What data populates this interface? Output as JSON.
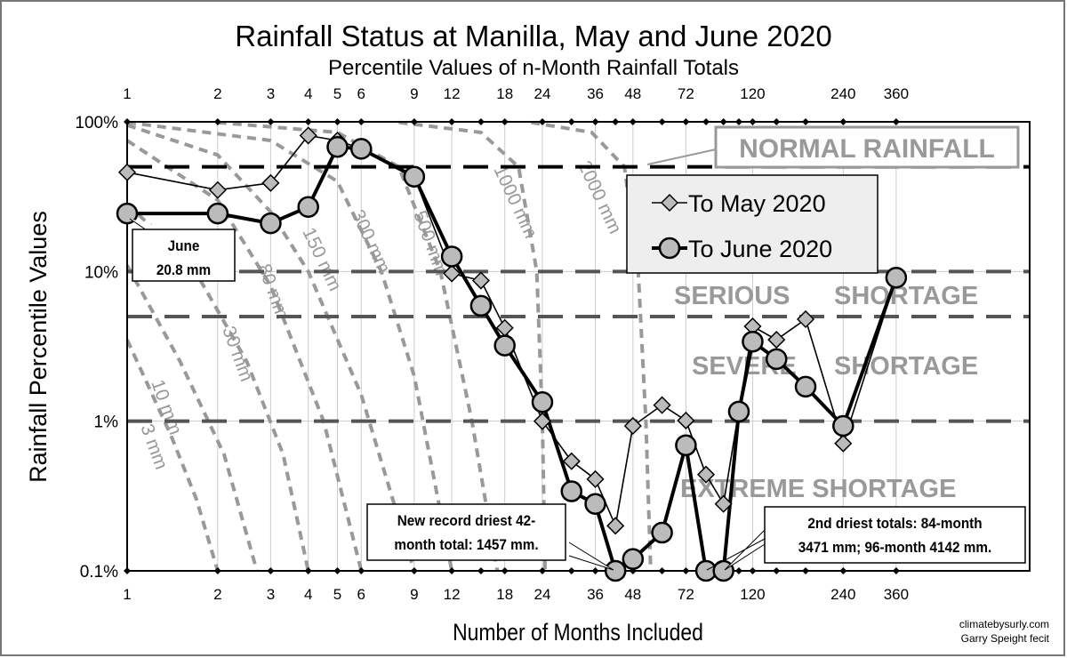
{
  "chart_data": {
    "type": "line",
    "title": "Rainfall Status at Manilla, May and June 2020",
    "subtitle": "Percentile Values of n-Month Rainfall Totals",
    "xlabel": "Number of Months Included",
    "ylabel": "Rainfall Percentile Values",
    "x_scale": "log",
    "y_scale": "log",
    "xlim": [
      1,
      1000
    ],
    "ylim": [
      0.1,
      100
    ],
    "x_ticks": [
      1,
      2,
      3,
      4,
      5,
      6,
      9,
      12,
      18,
      24,
      36,
      48,
      72,
      120,
      240,
      360
    ],
    "x_tick_labels": [
      "1",
      "2",
      "3",
      "4",
      "5",
      "6",
      "9",
      "12",
      "18",
      "24",
      "36",
      "48",
      "72",
      "120",
      "240",
      "360"
    ],
    "y_ticks": [
      0.1,
      1,
      10,
      100
    ],
    "y_tick_labels": [
      "0.1%",
      "1%",
      "10%",
      "100%"
    ],
    "grid": true,
    "legend_position": "top-right",
    "series": [
      {
        "name": "To May 2020",
        "marker": "diamond",
        "x": [
          1,
          2,
          3,
          4,
          5,
          6,
          9,
          12,
          15,
          18,
          24,
          30,
          36,
          42,
          48,
          60,
          72,
          84,
          96,
          120,
          144,
          180,
          240,
          360
        ],
        "y": [
          46,
          35,
          39,
          81,
          75,
          66,
          43,
          9.7,
          8.7,
          4.2,
          1.0,
          0.54,
          0.41,
          0.2,
          0.93,
          1.28,
          1.01,
          0.44,
          0.28,
          4.3,
          3.5,
          4.8,
          0.71,
          9.1
        ]
      },
      {
        "name": "To June 2020",
        "marker": "circle",
        "x": [
          1,
          2,
          3,
          4,
          5,
          6,
          9,
          12,
          15,
          18,
          24,
          30,
          36,
          42,
          48,
          60,
          72,
          84,
          96,
          108,
          120,
          144,
          180,
          240,
          360
        ],
        "y": [
          24.4,
          24.4,
          21,
          27,
          68,
          66,
          43,
          12.6,
          5.9,
          3.2,
          1.34,
          0.34,
          0.28,
          0.1,
          0.12,
          0.18,
          0.69,
          0.1,
          0.1,
          1.16,
          3.4,
          2.6,
          1.7,
          0.93,
          9.1
        ]
      }
    ],
    "iso_rainfall_curves": [
      {
        "label": "3 mm",
        "points": [
          [
            1,
            3.5
          ],
          [
            1.4,
            0.8
          ],
          [
            1.7,
            0.3
          ],
          [
            2,
            0.1
          ]
        ]
      },
      {
        "label": "10 mm",
        "points": [
          [
            1,
            11
          ],
          [
            1.5,
            2.5
          ],
          [
            2.1,
            0.6
          ],
          [
            2.7,
            0.1
          ]
        ]
      },
      {
        "label": "30 mm",
        "points": [
          [
            1,
            28
          ],
          [
            1.6,
            12
          ],
          [
            2.5,
            2.5
          ],
          [
            3.3,
            0.6
          ],
          [
            4,
            0.1
          ]
        ]
      },
      {
        "label": "80 mm",
        "points": [
          [
            1,
            75
          ],
          [
            2,
            30
          ],
          [
            3,
            8
          ],
          [
            4.5,
            1
          ],
          [
            6,
            0.1
          ]
        ]
      },
      {
        "label": "150 mm",
        "points": [
          [
            1,
            95
          ],
          [
            2,
            60
          ],
          [
            3,
            25
          ],
          [
            4,
            10
          ],
          [
            6,
            1.5
          ],
          [
            9,
            0.1
          ]
        ]
      },
      {
        "label": "300 mm",
        "points": [
          [
            1,
            99
          ],
          [
            3,
            75
          ],
          [
            5,
            40
          ],
          [
            7,
            10
          ],
          [
            9,
            2
          ],
          [
            12,
            0.1
          ]
        ]
      },
      {
        "label": "500 mm",
        "points": [
          [
            2,
            99
          ],
          [
            5,
            85
          ],
          [
            8,
            50
          ],
          [
            11,
            10
          ],
          [
            14,
            1
          ],
          [
            17,
            0.1
          ]
        ]
      },
      {
        "label": "1000 mm",
        "points": [
          [
            8,
            99
          ],
          [
            15,
            85
          ],
          [
            20,
            50
          ],
          [
            23,
            10
          ],
          [
            24,
            1
          ],
          [
            24.5,
            0.1
          ]
        ]
      },
      {
        "label": "2000 mm",
        "points": [
          [
            22,
            99
          ],
          [
            35,
            85
          ],
          [
            45,
            50
          ],
          [
            50,
            10
          ],
          [
            53,
            1
          ],
          [
            55,
            0.1
          ]
        ]
      }
    ],
    "reference_lines": [
      {
        "value": 50,
        "label": "NORMAL RAINFALL",
        "color": "#000000"
      },
      {
        "value": 10,
        "color": "#555555"
      },
      {
        "value": 5,
        "color": "#555555"
      },
      {
        "value": 1,
        "color": "#555555"
      }
    ],
    "zone_labels": [
      "SERIOUS",
      "SHORTAGE",
      "SEVERE",
      "SHORTAGE",
      "EXTREME SHORTAGE"
    ],
    "annotations": [
      {
        "lines": [
          "June",
          "20.8 mm"
        ]
      },
      {
        "lines": [
          "New record driest 42-",
          "month total: 1457 mm."
        ]
      },
      {
        "lines": [
          "2nd driest totals: 84-month",
          "3471 mm; 96-month   4142 mm."
        ]
      }
    ],
    "credits": [
      "climatebysurly.com",
      "Garry Speight fecit"
    ]
  }
}
